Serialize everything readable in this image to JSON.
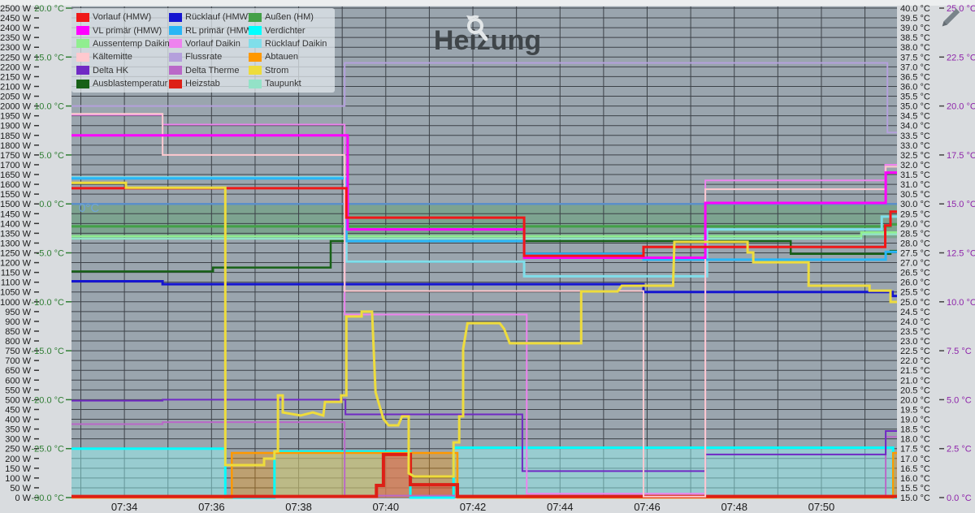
{
  "title": "Heizung",
  "toolbar": {
    "zoom_reset_icon": "magnifier-reset",
    "edit_icon": "pencil"
  },
  "reference": {
    "zero_line_label": "0°C",
    "zero_line_color": "#6fa3d9",
    "zero_line_axis": "temp_outside",
    "zero_line_value": 0,
    "band_axis": "temp_outside",
    "band_from": 0,
    "band_to": -3.5,
    "band_color": "rgba(60,160,75,0.30)"
  },
  "axes": {
    "watt": {
      "side": "left",
      "min": 0,
      "max": 2500,
      "step": 50,
      "unit": "W",
      "color": "#1a1a1a"
    },
    "temp_outside": {
      "side": "left",
      "min": -30,
      "max": 20,
      "step": 5,
      "unit": "°C",
      "color": "#2e7d32"
    },
    "temp_heating": {
      "side": "right",
      "min": 15,
      "max": 40,
      "step": 0.5,
      "unit": "°C",
      "color": "#1a1a1a"
    },
    "temp_delta": {
      "side": "right",
      "min": 0,
      "max": 25,
      "step": 2.5,
      "unit": "°C",
      "color": "#8e24aa"
    }
  },
  "x_axis": {
    "tick_labels": [
      "07:34",
      "07:36",
      "07:38",
      "07:40",
      "07:42",
      "07:44",
      "07:46",
      "07:48",
      "07:50"
    ],
    "first_label_offset_min": 1.2144,
    "label_every_min": 2,
    "minor_every_min": 1,
    "total_minutes": 18.95
  },
  "chart_data": {
    "type": "line",
    "x_unit": "minutes_from_left_edge",
    "series": [
      {
        "name": "Vorlauf (HMW)",
        "color": "#f01818",
        "axis": "temp_heating",
        "width": 3,
        "points": [
          [
            0,
            30.8
          ],
          [
            6.31,
            30.8
          ],
          [
            6.31,
            29.3
          ],
          [
            10.39,
            29.3
          ],
          [
            10.39,
            27.35
          ],
          [
            13.13,
            27.35
          ],
          [
            13.13,
            27.8
          ],
          [
            18.68,
            27.8
          ],
          [
            18.68,
            28.9
          ],
          [
            18.8,
            28.9
          ],
          [
            18.8,
            29.6
          ],
          [
            18.95,
            29.6
          ]
        ]
      },
      {
        "name": "Rücklauf (HMW)",
        "color": "#1515d0",
        "axis": "temp_heating",
        "width": 3,
        "points": [
          [
            0,
            26.05
          ],
          [
            2.09,
            26.05
          ],
          [
            2.09,
            25.9
          ],
          [
            13.13,
            25.9
          ],
          [
            13.13,
            25.5
          ],
          [
            18.85,
            25.5
          ],
          [
            18.85,
            25.3
          ],
          [
            18.95,
            25.3
          ]
        ]
      },
      {
        "name": "Außen (HM)",
        "color": "#43a047",
        "axis": "temp_outside",
        "width": 3,
        "points": [
          [
            0,
            -2.3
          ],
          [
            18.8,
            -2.3
          ],
          [
            18.8,
            -2.1
          ],
          [
            18.95,
            -2.1
          ]
        ]
      },
      {
        "name": "VL primär (HMW)",
        "color": "#ff00ff",
        "axis": "temp_heating",
        "width": 3,
        "points": [
          [
            0,
            33.5
          ],
          [
            6.34,
            33.5
          ],
          [
            6.34,
            28.7
          ],
          [
            10.39,
            28.7
          ],
          [
            10.39,
            27.25
          ],
          [
            14.55,
            27.25
          ],
          [
            14.55,
            30.05
          ],
          [
            18.69,
            30.05
          ],
          [
            18.69,
            31.6
          ],
          [
            18.95,
            31.6
          ]
        ]
      },
      {
        "name": "RL primär (HMW)",
        "color": "#29b6f6",
        "axis": "temp_heating",
        "width": 3,
        "points": [
          [
            0,
            31.3
          ],
          [
            6.31,
            31.3
          ],
          [
            6.31,
            28.1
          ],
          [
            10.39,
            28.1
          ],
          [
            10.39,
            27.45
          ],
          [
            13.13,
            27.45
          ],
          [
            13.13,
            27.15
          ],
          [
            18.69,
            27.15
          ],
          [
            18.69,
            27.55
          ],
          [
            18.95,
            27.55
          ]
        ]
      },
      {
        "name": "Verdichter",
        "color": "#00ffff",
        "axis": "watt",
        "width": 3,
        "fill": "rgba(150,252,250,0.45)",
        "points": [
          [
            0,
            250
          ],
          [
            3.53,
            250
          ],
          [
            3.53,
            0
          ],
          [
            4.66,
            0
          ],
          [
            4.66,
            235
          ],
          [
            7.78,
            235
          ],
          [
            7.78,
            0
          ],
          [
            8.77,
            0
          ],
          [
            8.77,
            255
          ],
          [
            18.86,
            255
          ],
          [
            18.86,
            0
          ],
          [
            18.95,
            0
          ]
        ]
      },
      {
        "name": "Aussentemp Daikin",
        "color": "#90ee90",
        "axis": "temp_outside",
        "width": 2.5,
        "points": [
          [
            0,
            -3.3
          ],
          [
            18.13,
            -3.3
          ],
          [
            18.13,
            -2.9
          ],
          [
            18.95,
            -2.9
          ]
        ]
      },
      {
        "name": "Vorlauf Daikin",
        "color": "#ee82ee",
        "axis": "temp_heating",
        "width": 2,
        "points": [
          [
            0,
            34.55
          ],
          [
            2.09,
            34.55
          ],
          [
            2.09,
            34.05
          ],
          [
            6.27,
            34.05
          ],
          [
            6.27,
            24.35
          ],
          [
            10.45,
            24.35
          ],
          [
            10.45,
            15.2
          ],
          [
            14.55,
            15.2
          ],
          [
            14.55,
            31.2
          ],
          [
            18.68,
            31.2
          ],
          [
            18.68,
            32.0
          ],
          [
            18.95,
            32.0
          ]
        ]
      },
      {
        "name": "Rücklauf Daikin",
        "color": "#80deea",
        "axis": "temp_heating",
        "width": 3,
        "points": [
          [
            0,
            31.35
          ],
          [
            6.31,
            31.35
          ],
          [
            6.31,
            27.05
          ],
          [
            10.39,
            27.05
          ],
          [
            10.39,
            26.3
          ],
          [
            14.59,
            26.3
          ],
          [
            14.59,
            28.7
          ],
          [
            18.6,
            28.7
          ],
          [
            18.6,
            29.35
          ],
          [
            18.95,
            29.35
          ]
        ]
      },
      {
        "name": "Kältemitte",
        "color": "#ffc9cf",
        "axis": "temp_heating",
        "width": 2,
        "points": [
          [
            0,
            34.6
          ],
          [
            2.09,
            34.6
          ],
          [
            2.09,
            32.5
          ],
          [
            6.27,
            32.5
          ],
          [
            6.27,
            25.55
          ],
          [
            13.13,
            25.55
          ],
          [
            13.13,
            15.05
          ],
          [
            14.55,
            15.05
          ],
          [
            14.55,
            30.75
          ],
          [
            18.69,
            30.75
          ],
          [
            18.69,
            31.9
          ],
          [
            18.95,
            31.9
          ]
        ]
      },
      {
        "name": "Flussrate",
        "color": "#b4a0dc",
        "axis": "temp_delta",
        "width": 2,
        "points": [
          [
            0,
            20.0
          ],
          [
            6.27,
            20.0
          ],
          [
            6.27,
            22.2
          ],
          [
            18.73,
            22.2
          ],
          [
            18.73,
            18.65
          ],
          [
            18.95,
            18.65
          ]
        ]
      },
      {
        "name": "Abtauen",
        "color": "#ff9800",
        "axis": "watt",
        "width": 2.5,
        "fill": "rgba(255,152,0,0.35)",
        "points": [
          [
            0,
            0
          ],
          [
            3.68,
            0
          ],
          [
            3.68,
            228
          ],
          [
            8.86,
            228
          ],
          [
            8.86,
            0
          ],
          [
            18.86,
            0
          ],
          [
            18.86,
            228
          ],
          [
            18.95,
            228
          ]
        ]
      },
      {
        "name": "Delta HK",
        "color": "#7029c4",
        "axis": "temp_delta",
        "width": 2,
        "points": [
          [
            0,
            4.95
          ],
          [
            2.09,
            4.95
          ],
          [
            2.09,
            5.0
          ],
          [
            6.29,
            5.0
          ],
          [
            6.29,
            4.25
          ],
          [
            10.35,
            4.25
          ],
          [
            10.35,
            1.35
          ],
          [
            14.55,
            1.35
          ],
          [
            14.55,
            2.2
          ],
          [
            18.69,
            2.2
          ],
          [
            18.69,
            3.4
          ],
          [
            18.95,
            3.4
          ]
        ]
      },
      {
        "name": "Delta Therme",
        "color": "#ba68c8",
        "axis": "temp_delta",
        "width": 2,
        "points": [
          [
            0,
            3.75
          ],
          [
            2.09,
            3.75
          ],
          [
            2.09,
            3.85
          ],
          [
            6.27,
            3.85
          ],
          [
            6.27,
            0.1
          ],
          [
            18.69,
            0.1
          ],
          [
            18.69,
            3.1
          ],
          [
            18.95,
            3.1
          ]
        ]
      },
      {
        "name": "Strom",
        "color": "#eedc3c",
        "axis": "watt",
        "width": 3,
        "points": [
          [
            0,
            1608
          ],
          [
            1.25,
            1608
          ],
          [
            1.25,
            1583
          ],
          [
            3.53,
            1583
          ],
          [
            3.53,
            166
          ],
          [
            4.42,
            166
          ],
          [
            4.42,
            199
          ],
          [
            4.66,
            199
          ],
          [
            4.66,
            236
          ],
          [
            4.74,
            236
          ],
          [
            4.74,
            522
          ],
          [
            4.85,
            522
          ],
          [
            4.85,
            435
          ],
          [
            5.26,
            419
          ],
          [
            5.54,
            435
          ],
          [
            5.78,
            419
          ],
          [
            5.82,
            489
          ],
          [
            6.19,
            489
          ],
          [
            6.19,
            522
          ],
          [
            6.31,
            522
          ],
          [
            6.31,
            925
          ],
          [
            6.66,
            925
          ],
          [
            6.66,
            950
          ],
          [
            6.9,
            950
          ],
          [
            6.98,
            539
          ],
          [
            7.07,
            469
          ],
          [
            7.16,
            402
          ],
          [
            7.28,
            369
          ],
          [
            7.5,
            369
          ],
          [
            7.59,
            415
          ],
          [
            7.74,
            415
          ],
          [
            7.74,
            124
          ],
          [
            7.87,
            108
          ],
          [
            8.77,
            108
          ],
          [
            8.77,
            282
          ],
          [
            8.9,
            282
          ],
          [
            8.9,
            415
          ],
          [
            8.99,
            415
          ],
          [
            8.99,
            759
          ],
          [
            9.09,
            891
          ],
          [
            9.83,
            891
          ],
          [
            9.93,
            862
          ],
          [
            10.06,
            788
          ],
          [
            11.7,
            788
          ],
          [
            11.7,
            1053
          ],
          [
            12.54,
            1053
          ],
          [
            12.63,
            1082
          ],
          [
            13.81,
            1082
          ],
          [
            13.84,
            1306
          ],
          [
            15.52,
            1306
          ],
          [
            15.52,
            1252
          ],
          [
            15.65,
            1252
          ],
          [
            15.65,
            1202
          ],
          [
            16.92,
            1202
          ],
          [
            16.92,
            1082
          ],
          [
            18.32,
            1082
          ],
          [
            18.32,
            1057
          ],
          [
            18.8,
            1057
          ],
          [
            18.8,
            999
          ],
          [
            18.95,
            999
          ]
        ]
      },
      {
        "name": "Ausblastemperatur",
        "color": "#176117",
        "axis": "temp_heating",
        "width": 2.5,
        "points": [
          [
            0,
            26.55
          ],
          [
            3.25,
            26.55
          ],
          [
            3.25,
            26.75
          ],
          [
            5.95,
            26.75
          ],
          [
            5.95,
            28.1
          ],
          [
            16.51,
            28.1
          ],
          [
            16.51,
            27.45
          ],
          [
            18.8,
            27.45
          ],
          [
            18.8,
            27.6
          ],
          [
            18.95,
            27.6
          ]
        ]
      },
      {
        "name": "Heizstab",
        "color": "#dd2016",
        "axis": "watt",
        "width": 4,
        "fill": "rgba(229,57,53,0.40)",
        "points": [
          [
            0,
            6
          ],
          [
            7.0,
            6
          ],
          [
            7.0,
            62
          ],
          [
            7.16,
            62
          ],
          [
            7.16,
            220
          ],
          [
            7.78,
            220
          ],
          [
            7.78,
            66
          ],
          [
            8.86,
            66
          ],
          [
            8.86,
            6
          ],
          [
            18.95,
            6
          ]
        ]
      },
      {
        "name": "Taupunkt",
        "color": "#93e2c7",
        "axis": "temp_outside",
        "width": 2.5,
        "points": [
          [
            0,
            -3.55
          ],
          [
            18.13,
            -3.55
          ],
          [
            18.13,
            -3.1
          ],
          [
            18.95,
            -3.1
          ]
        ]
      }
    ]
  }
}
